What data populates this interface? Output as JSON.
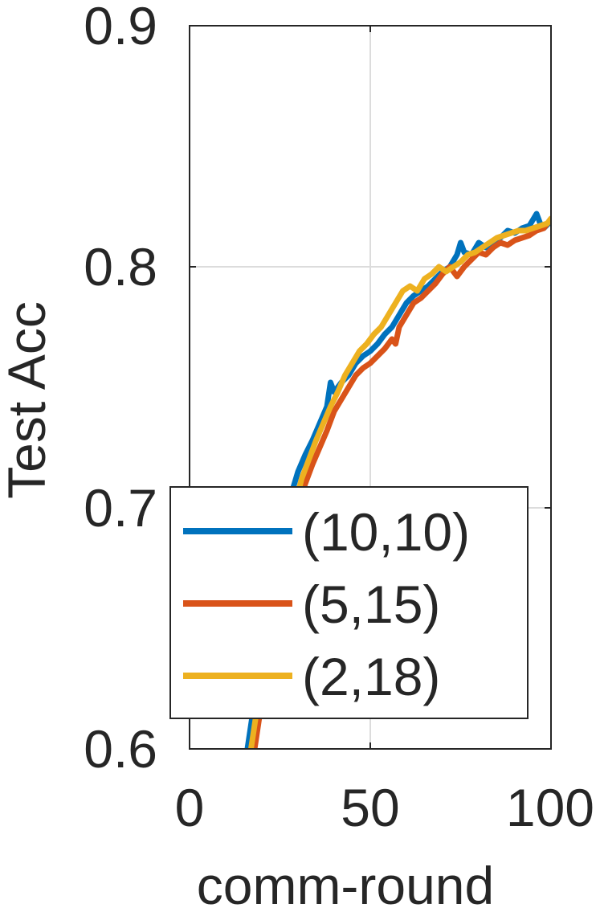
{
  "chart_data": {
    "type": "line",
    "xlabel": "comm-round",
    "ylabel": "Test Acc",
    "xlim": [
      0,
      100
    ],
    "ylim": [
      0.6,
      0.9
    ],
    "x_ticks": [
      "0",
      "50",
      "100"
    ],
    "y_ticks": [
      "0.6",
      "0.7",
      "0.8",
      "0.9"
    ],
    "grid": true,
    "legend_position": "bottom-left",
    "series": [
      {
        "name": "(10,10)",
        "color": "#0072BD",
        "points": [
          [
            16,
            0.6
          ],
          [
            18,
            0.62
          ],
          [
            20,
            0.64
          ],
          [
            22,
            0.66
          ],
          [
            24,
            0.675
          ],
          [
            26,
            0.69
          ],
          [
            28,
            0.705
          ],
          [
            30,
            0.715
          ],
          [
            32,
            0.722
          ],
          [
            34,
            0.728
          ],
          [
            36,
            0.735
          ],
          [
            38,
            0.742
          ],
          [
            39,
            0.752
          ],
          [
            40,
            0.748
          ],
          [
            42,
            0.752
          ],
          [
            44,
            0.755
          ],
          [
            46,
            0.76
          ],
          [
            48,
            0.763
          ],
          [
            50,
            0.765
          ],
          [
            52,
            0.768
          ],
          [
            54,
            0.772
          ],
          [
            56,
            0.775
          ],
          [
            58,
            0.78
          ],
          [
            60,
            0.785
          ],
          [
            62,
            0.788
          ],
          [
            64,
            0.79
          ],
          [
            66,
            0.792
          ],
          [
            68,
            0.795
          ],
          [
            70,
            0.798
          ],
          [
            72,
            0.8
          ],
          [
            74,
            0.805
          ],
          [
            75,
            0.81
          ],
          [
            76,
            0.806
          ],
          [
            78,
            0.805
          ],
          [
            80,
            0.81
          ],
          [
            82,
            0.808
          ],
          [
            84,
            0.81
          ],
          [
            86,
            0.812
          ],
          [
            88,
            0.815
          ],
          [
            90,
            0.814
          ],
          [
            92,
            0.816
          ],
          [
            94,
            0.817
          ],
          [
            96,
            0.822
          ],
          [
            97,
            0.818
          ],
          [
            98,
            0.816
          ],
          [
            100,
            0.819
          ]
        ]
      },
      {
        "name": "(5,15)",
        "color": "#D95319",
        "points": [
          [
            18,
            0.6
          ],
          [
            20,
            0.62
          ],
          [
            22,
            0.64
          ],
          [
            24,
            0.66
          ],
          [
            26,
            0.675
          ],
          [
            28,
            0.688
          ],
          [
            30,
            0.7
          ],
          [
            32,
            0.71
          ],
          [
            34,
            0.718
          ],
          [
            36,
            0.725
          ],
          [
            38,
            0.732
          ],
          [
            40,
            0.74
          ],
          [
            42,
            0.745
          ],
          [
            44,
            0.75
          ],
          [
            46,
            0.755
          ],
          [
            48,
            0.758
          ],
          [
            50,
            0.76
          ],
          [
            52,
            0.763
          ],
          [
            54,
            0.766
          ],
          [
            56,
            0.77
          ],
          [
            57,
            0.768
          ],
          [
            58,
            0.775
          ],
          [
            60,
            0.78
          ],
          [
            62,
            0.785
          ],
          [
            64,
            0.787
          ],
          [
            66,
            0.79
          ],
          [
            68,
            0.793
          ],
          [
            70,
            0.797
          ],
          [
            72,
            0.8
          ],
          [
            74,
            0.796
          ],
          [
            76,
            0.8
          ],
          [
            78,
            0.803
          ],
          [
            80,
            0.806
          ],
          [
            82,
            0.805
          ],
          [
            84,
            0.808
          ],
          [
            86,
            0.81
          ],
          [
            88,
            0.809
          ],
          [
            90,
            0.811
          ],
          [
            92,
            0.812
          ],
          [
            94,
            0.813
          ],
          [
            96,
            0.815
          ],
          [
            98,
            0.816
          ],
          [
            100,
            0.82
          ]
        ]
      },
      {
        "name": "(2,18)",
        "color": "#EDB120",
        "points": [
          [
            17,
            0.6
          ],
          [
            19,
            0.62
          ],
          [
            21,
            0.64
          ],
          [
            23,
            0.66
          ],
          [
            25,
            0.675
          ],
          [
            27,
            0.688
          ],
          [
            29,
            0.7
          ],
          [
            31,
            0.712
          ],
          [
            33,
            0.72
          ],
          [
            35,
            0.728
          ],
          [
            37,
            0.735
          ],
          [
            39,
            0.742
          ],
          [
            41,
            0.748
          ],
          [
            43,
            0.755
          ],
          [
            45,
            0.76
          ],
          [
            47,
            0.765
          ],
          [
            49,
            0.768
          ],
          [
            51,
            0.772
          ],
          [
            53,
            0.775
          ],
          [
            55,
            0.78
          ],
          [
            57,
            0.785
          ],
          [
            59,
            0.79
          ],
          [
            61,
            0.792
          ],
          [
            63,
            0.79
          ],
          [
            65,
            0.795
          ],
          [
            67,
            0.797
          ],
          [
            69,
            0.8
          ],
          [
            71,
            0.798
          ],
          [
            73,
            0.8
          ],
          [
            75,
            0.802
          ],
          [
            77,
            0.805
          ],
          [
            79,
            0.806
          ],
          [
            81,
            0.808
          ],
          [
            83,
            0.81
          ],
          [
            85,
            0.812
          ],
          [
            87,
            0.813
          ],
          [
            89,
            0.814
          ],
          [
            91,
            0.815
          ],
          [
            93,
            0.815
          ],
          [
            95,
            0.816
          ],
          [
            97,
            0.817
          ],
          [
            99,
            0.818
          ],
          [
            100,
            0.82
          ]
        ]
      }
    ]
  }
}
